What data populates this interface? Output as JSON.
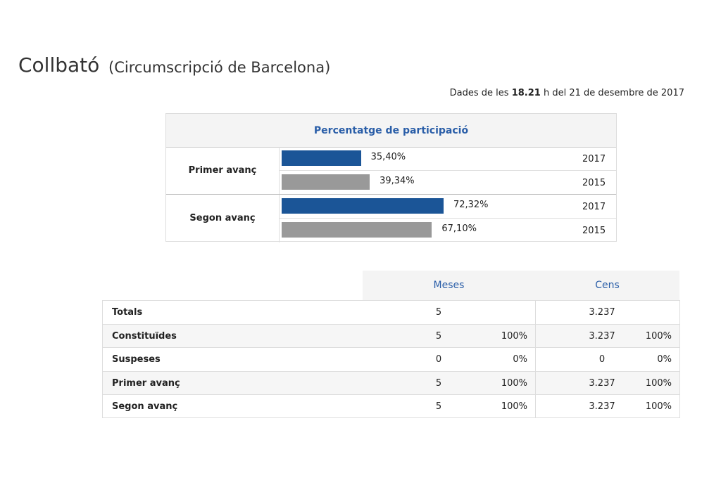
{
  "header": {
    "title": "Collbató",
    "subtitle": "(Circumscripció de Barcelona)",
    "date_prefix": "Dades de les",
    "date_time": "18.21",
    "date_suffix": "h del 21 de desembre de 2017"
  },
  "participation": {
    "title": "Percentatge de participació",
    "colors": {
      "2017": "#1b5597",
      "2015": "#999999"
    },
    "groups": [
      {
        "label": "Primer avanç",
        "rows": [
          {
            "year": "2017",
            "value": 35.4,
            "value_label": "35,40%"
          },
          {
            "year": "2015",
            "value": 39.34,
            "value_label": "39,34%"
          }
        ]
      },
      {
        "label": "Segon avanç",
        "rows": [
          {
            "year": "2017",
            "value": 72.32,
            "value_label": "72,32%"
          },
          {
            "year": "2015",
            "value": 67.1,
            "value_label": "67,10%"
          }
        ]
      }
    ]
  },
  "table": {
    "columns": [
      "Meses",
      "Cens"
    ],
    "rows": [
      [
        "Totals",
        "5",
        "",
        "3.237",
        ""
      ],
      [
        "Constituïdes",
        "5",
        "100%",
        "3.237",
        "100%"
      ],
      [
        "Suspeses",
        "0",
        "0%",
        "0",
        "0%"
      ],
      [
        "Primer avanç",
        "5",
        "100%",
        "3.237",
        "100%"
      ],
      [
        "Segon avanç",
        "5",
        "100%",
        "3.237",
        "100%"
      ]
    ]
  }
}
